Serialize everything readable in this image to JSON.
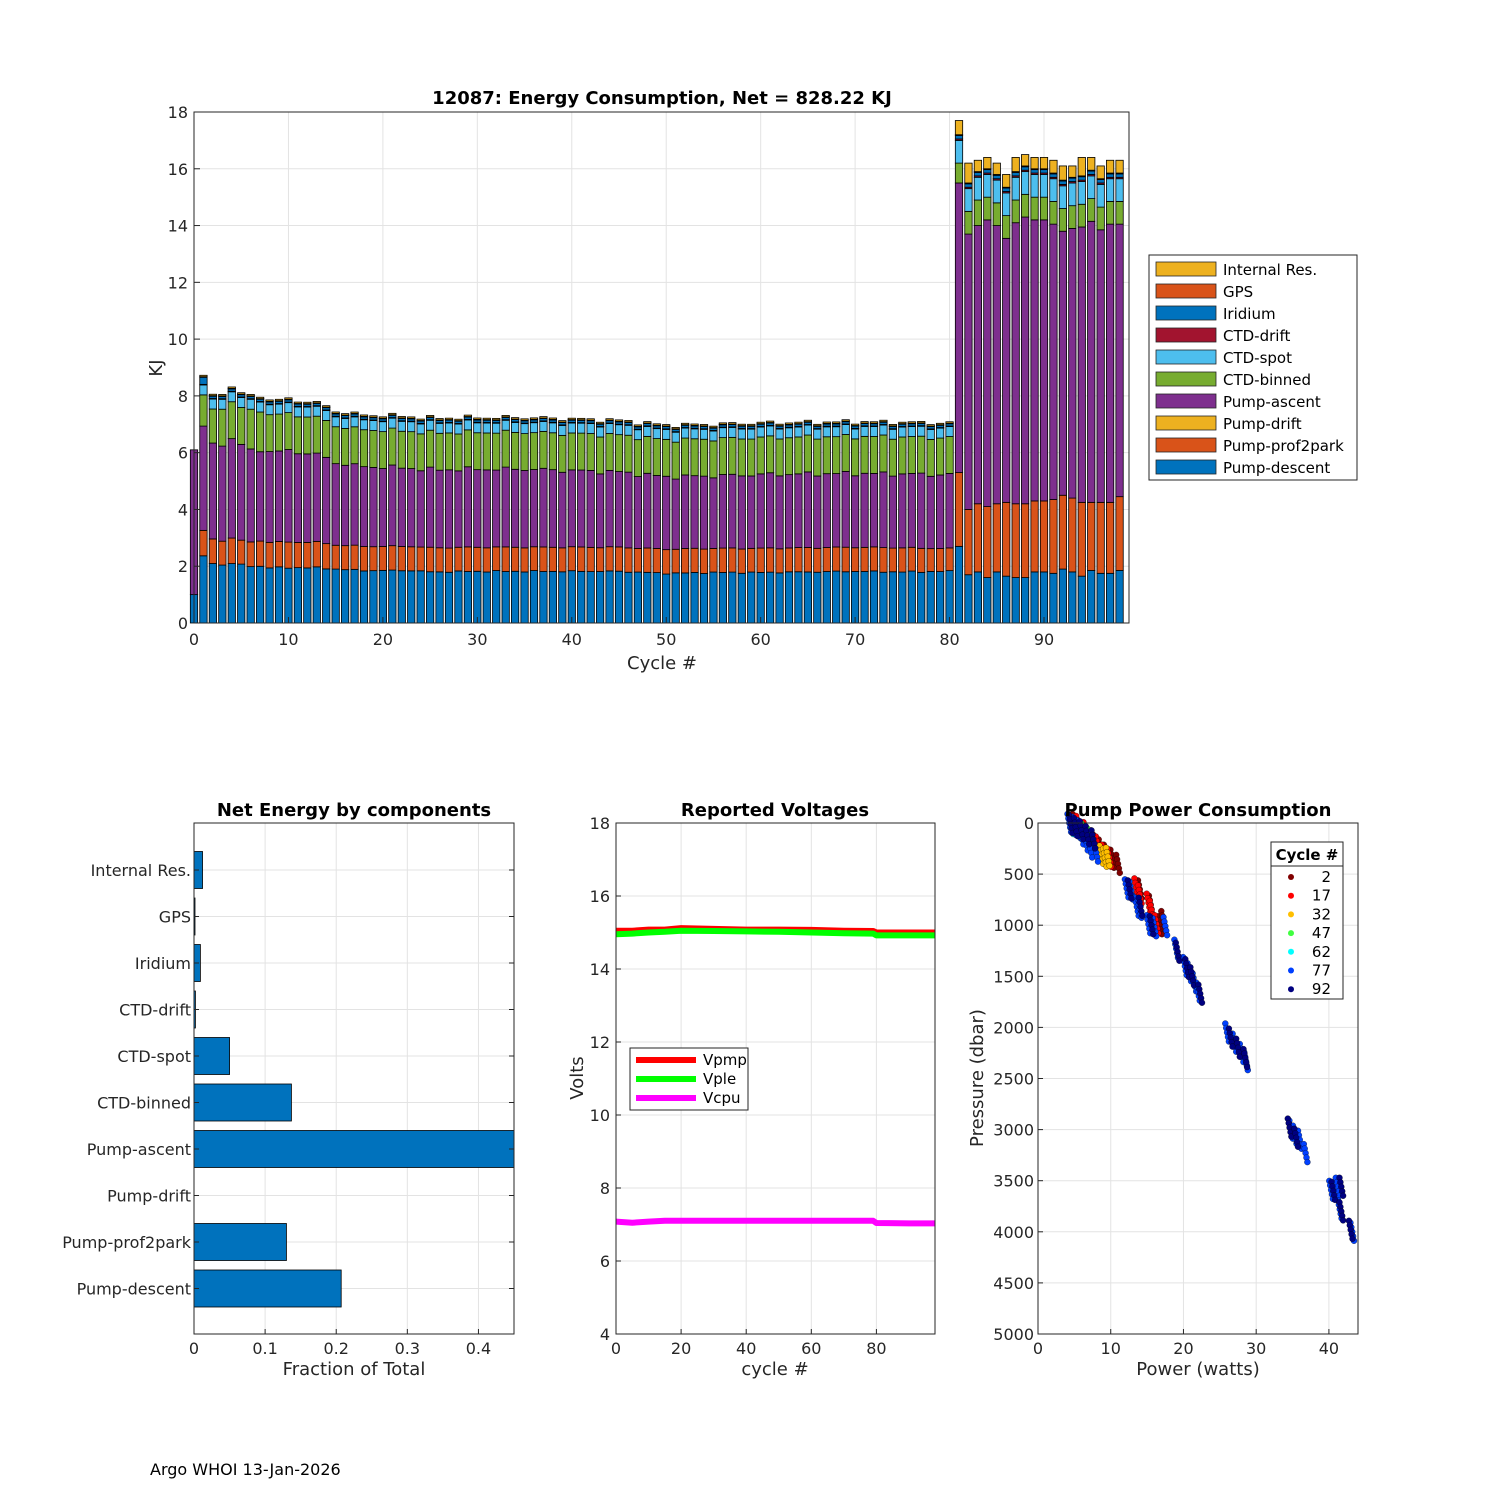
{
  "footer": "Argo WHOI 13-Jan-2026",
  "colors": {
    "internal_res": "#EDB120",
    "gps": "#D95319",
    "iridium": "#0072BD",
    "ctd_drift": "#A2142F",
    "ctd_spot": "#4DBEEE",
    "ctd_binned": "#77AC30",
    "pump_ascent": "#7E2F8E",
    "pump_drift": "#EDB120",
    "pump_prof2park": "#D95319",
    "pump_descent": "#0072BD"
  },
  "chart_data": [
    {
      "id": "energy",
      "type": "bar",
      "stacked": true,
      "title": "12087: Energy Consumption,  Net = 828.22 KJ",
      "xlabel": "Cycle #",
      "ylabel": "KJ",
      "xlim": [
        0,
        99
      ],
      "ylim": [
        0,
        18
      ],
      "xticks": [
        0,
        10,
        20,
        30,
        40,
        50,
        60,
        70,
        80,
        90
      ],
      "yticks": [
        0,
        2,
        4,
        6,
        8,
        10,
        12,
        14,
        16,
        18
      ],
      "grid": true,
      "legend_position": "right",
      "legend": [
        "Internal Res.",
        "GPS",
        "Iridium",
        "CTD-drift",
        "CTD-spot",
        "CTD-binned",
        "Pump-ascent",
        "Pump-drift",
        "Pump-prof2park",
        "Pump-descent"
      ],
      "legend_keys": [
        "internal_res",
        "gps",
        "iridium",
        "ctd_drift",
        "ctd_spot",
        "ctd_binned",
        "pump_ascent",
        "pump_drift",
        "pump_prof2park",
        "pump_descent"
      ],
      "cycles_start": 0,
      "cycle0_total": 6.1,
      "cycle0_descent": 1.0,
      "key_points": {
        "cycle": [
          1,
          2,
          3,
          4,
          5,
          6,
          7,
          8,
          10,
          13,
          15,
          18,
          20,
          23,
          25,
          30,
          35,
          40,
          45,
          50,
          55,
          60,
          65,
          70,
          75,
          80
        ],
        "descent": [
          2.35,
          2.1,
          2.05,
          2.1,
          2.05,
          2.0,
          2.0,
          1.95,
          1.95,
          1.95,
          1.9,
          1.85,
          1.85,
          1.85,
          1.8,
          1.82,
          1.82,
          1.82,
          1.82,
          1.75,
          1.78,
          1.78,
          1.8,
          1.82,
          1.8,
          1.82
        ],
        "prof2park": [
          0.9,
          0.85,
          0.85,
          0.9,
          0.85,
          0.85,
          0.9,
          0.9,
          0.9,
          0.9,
          0.85,
          0.85,
          0.85,
          0.85,
          0.85,
          0.85,
          0.85,
          0.85,
          0.85,
          0.85,
          0.85,
          0.85,
          0.85,
          0.85,
          0.85,
          0.8
        ],
        "ascent": [
          3.7,
          3.3,
          3.4,
          3.5,
          3.4,
          3.2,
          3.2,
          3.2,
          3.2,
          3.1,
          2.9,
          2.8,
          2.8,
          2.75,
          2.75,
          2.75,
          2.75,
          2.7,
          2.65,
          2.55,
          2.55,
          2.6,
          2.6,
          2.6,
          2.6,
          2.6
        ],
        "binned": [
          1.1,
          1.2,
          1.3,
          1.3,
          1.3,
          1.4,
          1.4,
          1.3,
          1.3,
          1.3,
          1.3,
          1.3,
          1.3,
          1.3,
          1.3,
          1.3,
          1.3,
          1.3,
          1.3,
          1.3,
          1.3,
          1.3,
          1.3,
          1.3,
          1.3,
          1.3
        ],
        "spot": [
          0.35,
          0.35,
          0.35,
          0.35,
          0.35,
          0.35,
          0.35,
          0.35,
          0.35,
          0.35,
          0.35,
          0.35,
          0.35,
          0.35,
          0.35,
          0.35,
          0.35,
          0.35,
          0.35,
          0.35,
          0.35,
          0.35,
          0.35,
          0.35,
          0.35,
          0.35
        ],
        "iridium": [
          0.25,
          0.08,
          0.08,
          0.08,
          0.08,
          0.08,
          0.08,
          0.08,
          0.08,
          0.08,
          0.08,
          0.08,
          0.08,
          0.08,
          0.08,
          0.08,
          0.08,
          0.08,
          0.08,
          0.08,
          0.08,
          0.08,
          0.08,
          0.08,
          0.08,
          0.08
        ],
        "ctd_drift": [
          0.02,
          0.02,
          0.02,
          0.02,
          0.02,
          0.02,
          0.02,
          0.02,
          0.02,
          0.02,
          0.02,
          0.02,
          0.02,
          0.02,
          0.02,
          0.02,
          0.02,
          0.02,
          0.02,
          0.02,
          0.02,
          0.02,
          0.02,
          0.02,
          0.02,
          0.02
        ],
        "gps": [
          0.02,
          0.02,
          0.02,
          0.02,
          0.02,
          0.02,
          0.02,
          0.02,
          0.02,
          0.02,
          0.02,
          0.02,
          0.02,
          0.02,
          0.02,
          0.02,
          0.02,
          0.02,
          0.02,
          0.02,
          0.02,
          0.02,
          0.02,
          0.02,
          0.02,
          0.02
        ],
        "internal": [
          0.05,
          0.05,
          0.05,
          0.05,
          0.05,
          0.05,
          0.05,
          0.05,
          0.05,
          0.05,
          0.05,
          0.05,
          0.05,
          0.05,
          0.05,
          0.05,
          0.05,
          0.05,
          0.05,
          0.05,
          0.05,
          0.05,
          0.05,
          0.05,
          0.05,
          0.05
        ]
      },
      "high_phase": {
        "cycles": [
          81,
          82,
          83,
          84,
          85,
          86,
          87,
          88,
          89,
          90,
          91,
          92,
          93,
          94,
          95,
          96,
          97,
          98
        ],
        "totals": [
          17.7,
          16.2,
          16.3,
          16.4,
          16.2,
          15.8,
          16.4,
          16.5,
          16.4,
          16.4,
          16.3,
          16.1,
          16.1,
          16.4,
          16.4,
          16.1,
          16.3,
          16.3
        ],
        "descent": [
          2.7,
          1.7,
          1.8,
          1.6,
          1.8,
          1.65,
          1.6,
          1.6,
          1.8,
          1.8,
          1.75,
          1.9,
          1.8,
          1.65,
          1.85,
          1.75,
          1.75,
          1.85
        ],
        "prof2park": [
          2.6,
          2.3,
          2.4,
          2.5,
          2.4,
          2.6,
          2.6,
          2.6,
          2.5,
          2.5,
          2.6,
          2.6,
          2.6,
          2.6,
          2.4,
          2.5,
          2.5,
          2.6
        ],
        "ascent": [
          10.2,
          9.7,
          9.8,
          10.1,
          9.8,
          9.3,
          9.9,
          10.1,
          9.9,
          9.9,
          9.7,
          9.3,
          9.5,
          9.7,
          9.9,
          9.6,
          9.8,
          9.6
        ],
        "binned": [
          0.7,
          0.8,
          0.9,
          0.8,
          0.8,
          0.8,
          0.8,
          0.8,
          0.8,
          0.8,
          0.8,
          0.8,
          0.8,
          0.8,
          0.8,
          0.8,
          0.8,
          0.8
        ],
        "spot": [
          0.8,
          0.8,
          0.8,
          0.8,
          0.8,
          0.8,
          0.8,
          0.8,
          0.8,
          0.8,
          0.8,
          0.8,
          0.8,
          0.8,
          0.8,
          0.8,
          0.8,
          0.8
        ]
      }
    },
    {
      "id": "components",
      "type": "bar",
      "orientation": "horizontal",
      "title": "Net Energy by components",
      "xlabel": "Fraction of Total",
      "xlim": [
        0,
        0.45
      ],
      "xticks": [
        0,
        0.1,
        0.2,
        0.3,
        0.4
      ],
      "xtick_labels": [
        "0",
        "0.1",
        "0.2",
        "0.3",
        "0.4"
      ],
      "categories": [
        "Internal Res.",
        "GPS",
        "Iridium",
        "CTD-drift",
        "CTD-spot",
        "CTD-binned",
        "Pump-ascent",
        "Pump-drift",
        "Pump-prof2park",
        "Pump-descent"
      ],
      "values": [
        0.012,
        0.001,
        0.009,
        0.002,
        0.05,
        0.137,
        0.45,
        0.0,
        0.13,
        0.207
      ]
    },
    {
      "id": "voltages",
      "type": "line",
      "title": "Reported Voltages",
      "xlabel": "cycle #",
      "ylabel": "Volts",
      "xlim": [
        0,
        98
      ],
      "ylim": [
        4,
        18
      ],
      "xticks": [
        0,
        20,
        40,
        60,
        80
      ],
      "yticks": [
        4,
        6,
        8,
        10,
        12,
        14,
        16,
        18
      ],
      "legend_position": "middle-left",
      "series": [
        {
          "name": "Vpmp",
          "color": "#FF0000",
          "x": [
            0,
            5,
            10,
            15,
            20,
            30,
            40,
            50,
            60,
            70,
            79,
            80,
            90,
            98
          ],
          "y": [
            15.05,
            15.05,
            15.08,
            15.08,
            15.12,
            15.1,
            15.08,
            15.08,
            15.07,
            15.05,
            15.04,
            15.0,
            15.0,
            15.0
          ]
        },
        {
          "name": "Vple",
          "color": "#00FF00",
          "x": [
            0,
            5,
            10,
            15,
            20,
            30,
            40,
            50,
            60,
            70,
            79,
            80,
            90,
            98
          ],
          "y": [
            14.95,
            14.97,
            15.0,
            15.02,
            15.05,
            15.04,
            15.03,
            15.02,
            15.0,
            14.98,
            14.97,
            14.92,
            14.92,
            14.92
          ]
        },
        {
          "name": "Vcpu",
          "color": "#FF00FF",
          "x": [
            0,
            5,
            10,
            15,
            20,
            30,
            40,
            50,
            60,
            70,
            79,
            80,
            90,
            98
          ],
          "y": [
            7.08,
            7.05,
            7.08,
            7.1,
            7.1,
            7.1,
            7.1,
            7.1,
            7.1,
            7.1,
            7.1,
            7.04,
            7.03,
            7.03
          ]
        }
      ]
    },
    {
      "id": "pump",
      "type": "scatter",
      "title": "Pump Power Consumption",
      "xlabel": "Power (watts)",
      "ylabel": "Pressure (dbar)",
      "xlim": [
        0,
        44
      ],
      "ylim": [
        0,
        5000
      ],
      "y_reversed": true,
      "xticks": [
        0,
        10,
        20,
        30,
        40
      ],
      "yticks": [
        0,
        500,
        1000,
        1500,
        2000,
        2500,
        3000,
        3500,
        4000,
        4500,
        5000
      ],
      "legend_title": "Cycle #",
      "legend_position": "top-right",
      "series": [
        {
          "name": "2",
          "color": "#800000",
          "points": [
            [
              5.0,
              0
            ],
            [
              5.6,
              50
            ],
            [
              6.2,
              100
            ],
            [
              7.0,
              150
            ],
            [
              7.8,
              200
            ],
            [
              8.6,
              250
            ],
            [
              9.3,
              300
            ],
            [
              10.2,
              350
            ],
            [
              11.0,
              400
            ],
            [
              14.0,
              650
            ],
            [
              15.5,
              800
            ],
            [
              16.8,
              1000
            ],
            [
              17.2,
              950
            ],
            [
              16.0,
              1000
            ]
          ]
        },
        {
          "name": "17",
          "color": "#FF0000",
          "points": [
            [
              5.5,
              20
            ],
            [
              6.5,
              80
            ],
            [
              7.5,
              160
            ],
            [
              8.2,
              220
            ],
            [
              9.0,
              300
            ],
            [
              9.8,
              340
            ],
            [
              13.5,
              630
            ],
            [
              14.0,
              700
            ],
            [
              15.2,
              780
            ],
            [
              15.6,
              850
            ],
            [
              16.3,
              990
            ]
          ]
        },
        {
          "name": "32",
          "color": "#FFBF00",
          "points": [
            [
              8.7,
              310
            ],
            [
              9.2,
              340
            ],
            [
              9.6,
              330
            ]
          ]
        },
        {
          "name": "47",
          "color": "#40FF40",
          "points": [
            [
              6.2,
              90
            ],
            [
              7.0,
              140
            ]
          ]
        },
        {
          "name": "62",
          "color": "#00FFFF",
          "points": [
            [
              4.6,
              20
            ],
            [
              5.8,
              70
            ]
          ]
        },
        {
          "name": "77",
          "color": "#0040FF",
          "points": [
            [
              4.3,
              0
            ],
            [
              5.0,
              30
            ],
            [
              5.6,
              60
            ],
            [
              6.0,
              120
            ],
            [
              6.6,
              180
            ],
            [
              7.2,
              250
            ],
            [
              8.0,
              290
            ],
            [
              12.2,
              640
            ],
            [
              12.8,
              660
            ],
            [
              13.6,
              820
            ],
            [
              14.0,
              840
            ],
            [
              15.2,
              990
            ],
            [
              16.0,
              1020
            ],
            [
              17.5,
              1010
            ],
            [
              19.0,
              1230
            ],
            [
              20.2,
              1400
            ],
            [
              20.8,
              1460
            ],
            [
              21.5,
              1560
            ],
            [
              22.0,
              1650
            ],
            [
              26.0,
              2050
            ],
            [
              27.0,
              2150
            ],
            [
              28.0,
              2250
            ],
            [
              28.6,
              2330
            ],
            [
              34.8,
              3000
            ],
            [
              35.3,
              3050
            ],
            [
              36.0,
              3100
            ],
            [
              36.8,
              3230
            ],
            [
              40.3,
              3590
            ],
            [
              41.2,
              3560
            ],
            [
              41.5,
              3780
            ],
            [
              43.2,
              4000
            ]
          ]
        },
        {
          "name": "92",
          "color": "#000080",
          "points": [
            [
              4.5,
              10
            ],
            [
              5.2,
              40
            ],
            [
              6.0,
              70
            ],
            [
              6.8,
              120
            ],
            [
              7.6,
              160
            ],
            [
              12.6,
              650
            ],
            [
              14.1,
              820
            ],
            [
              15.6,
              1000
            ],
            [
              19.2,
              1260
            ],
            [
              20.5,
              1420
            ],
            [
              21.2,
              1500
            ],
            [
              22.3,
              1670
            ],
            [
              26.5,
              2100
            ],
            [
              27.5,
              2200
            ],
            [
              28.5,
              2300
            ],
            [
              34.6,
              2980
            ],
            [
              35.5,
              3080
            ],
            [
              40.6,
              3600
            ],
            [
              41.7,
              3560
            ],
            [
              41.7,
              3800
            ],
            [
              43.0,
              3980
            ]
          ]
        }
      ]
    }
  ]
}
